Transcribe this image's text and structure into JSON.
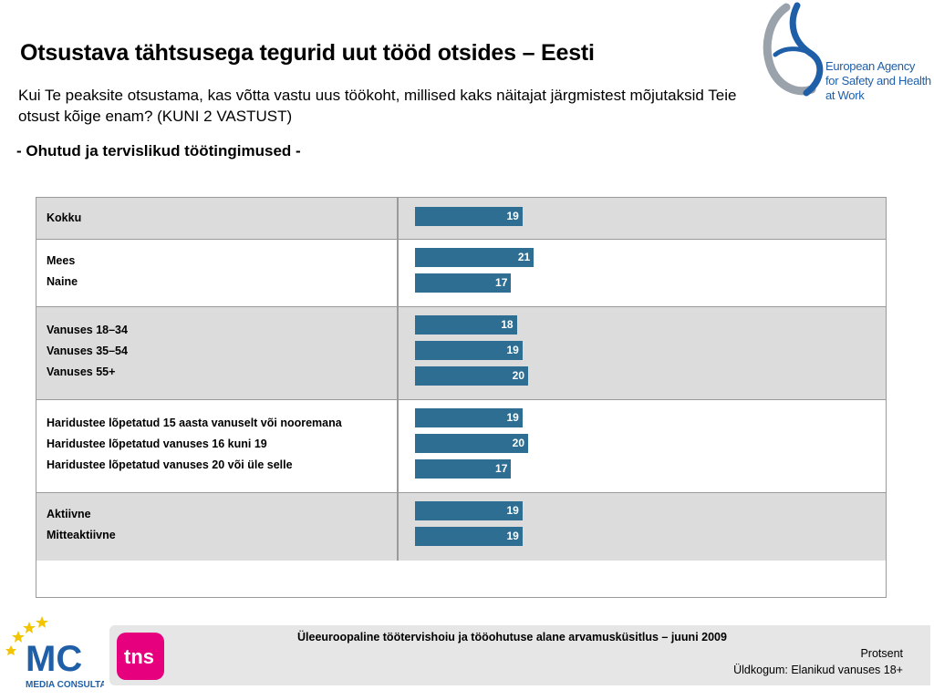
{
  "header": {
    "title": "Otsustava tähtsusega tegurid uut tööd otsides – Eesti",
    "question": "Kui Te peaksite otsustama, kas võtta vastu uus töökoht, millised kaks näitajat järgmistest mõjutaksid Teie otsust kõige enam? (KUNI 2 VASTUST)",
    "subtitle": "- Ohutud ja tervislikud töötingimused -"
  },
  "logos": {
    "eu_agency": "European Agency for Safety and Health at Work",
    "eu_agency_lines": [
      "European Agency",
      "for Safety and Health",
      "at Work"
    ],
    "media_consulta": "MEDIA CONSULTA",
    "mc": "MC",
    "tns": "tns"
  },
  "chart_data": {
    "type": "bar",
    "orientation": "horizontal",
    "xlim": [
      0,
      100
    ],
    "bar_color": "#2f6e93",
    "groups": [
      {
        "shaded": true,
        "categories": [
          "Kokku"
        ],
        "values": [
          19
        ]
      },
      {
        "shaded": false,
        "categories": [
          "Mees",
          "Naine"
        ],
        "values": [
          21,
          17
        ]
      },
      {
        "shaded": true,
        "categories": [
          "Vanuses 18–34",
          "Vanuses 35–54",
          "Vanuses 55+"
        ],
        "values": [
          18,
          19,
          20
        ]
      },
      {
        "shaded": false,
        "categories": [
          "Haridustee lõpetatud 15 aasta vanuselt või nooremana",
          "Haridustee lõpetatud vanuses 16 kuni 19",
          "Haridustee lõpetatud vanuses 20 või üle selle"
        ],
        "values": [
          19,
          20,
          17
        ]
      },
      {
        "shaded": true,
        "categories": [
          "Aktiivne",
          "Mitteaktiivne"
        ],
        "values": [
          19,
          19
        ]
      }
    ]
  },
  "footer": {
    "survey": "Üleeuroopaline töötervishoiu ja tööohutuse alane arvamusküsitlus – juuni 2009",
    "unit": "Protsent",
    "base": "Üldkogum: Elanikud vanuses 18+"
  }
}
